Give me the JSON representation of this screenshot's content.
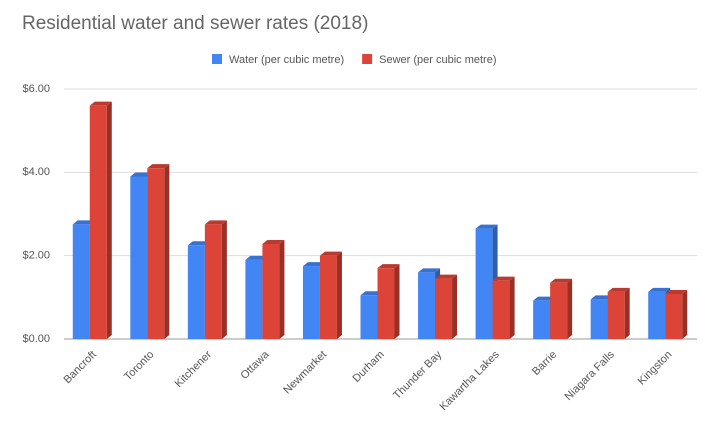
{
  "chart_data": {
    "type": "bar",
    "title": "Residential water and sewer rates (2018)",
    "categories": [
      "Bancroft",
      "Toronto",
      "Kitchener",
      "Ottawa",
      "Newmarket",
      "Durham",
      "Thunder Bay",
      "Kawartha Lakes",
      "Barrie",
      "Niagara Falls",
      "Kingston"
    ],
    "series": [
      {
        "name": "Water (per cubic metre)",
        "color": "#4285f4",
        "values": [
          2.75,
          3.9,
          2.25,
          1.9,
          1.75,
          1.05,
          1.6,
          2.65,
          0.92,
          0.95,
          1.13
        ]
      },
      {
        "name": "Sewer (per cubic metre)",
        "color": "#db4437",
        "values": [
          5.6,
          4.1,
          2.75,
          2.28,
          2.0,
          1.7,
          1.45,
          1.4,
          1.35,
          1.13,
          1.08
        ]
      }
    ],
    "ylim": [
      0,
      6
    ],
    "yticks": [
      {
        "value": 0,
        "label": "$0.00"
      },
      {
        "value": 2,
        "label": "$2.00"
      },
      {
        "value": 4,
        "label": "$4.00"
      },
      {
        "value": 6,
        "label": "$6.00"
      }
    ],
    "grid": true,
    "legend": "top"
  }
}
